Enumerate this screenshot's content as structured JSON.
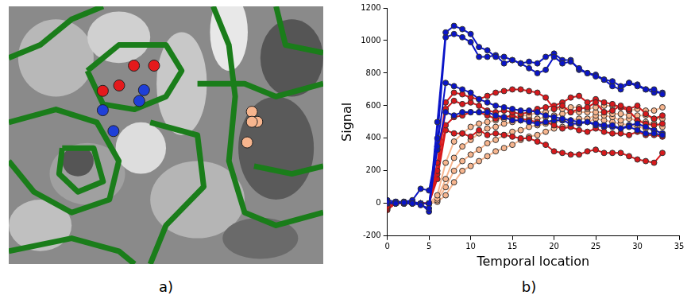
{
  "chart_data": [
    {
      "type": "scatter",
      "annotation": "a)",
      "tick_labels": false,
      "grid": false,
      "xlim": [
        0,
        100
      ],
      "ylim": [
        0,
        100
      ],
      "series": [
        {
          "color": "#e41a1c",
          "marker": "circle",
          "x": [
            39.8,
            46.2,
            29.9,
            35.1
          ],
          "values": [
            77.0,
            77.0,
            67.2,
            69.3
          ]
        },
        {
          "color": "#1f3fd8",
          "marker": "circle",
          "x": [
            43.0,
            41.5,
            29.9,
            33.3
          ],
          "values": [
            67.5,
            63.3,
            59.7,
            51.6
          ]
        },
        {
          "color": "#f7b58e",
          "marker": "circle",
          "x": [
            77.3,
            79.0,
            77.3,
            75.8
          ],
          "values": [
            59.1,
            55.2,
            55.2,
            47.2
          ]
        }
      ]
    },
    {
      "type": "line",
      "annotation": "b)",
      "x_label": "Temporal location",
      "y_label": "Signal",
      "grid": false,
      "xlim": [
        0,
        35
      ],
      "xticks": [
        0,
        5,
        10,
        15,
        20,
        25,
        30,
        35
      ],
      "ylim": [
        -200,
        1200
      ],
      "yticks": [
        -200,
        0,
        200,
        400,
        600,
        800,
        1000,
        1200
      ],
      "x": [
        0,
        1,
        2,
        3,
        4,
        5,
        6,
        7,
        8,
        9,
        10,
        11,
        12,
        13,
        14,
        15,
        16,
        17,
        18,
        19,
        20,
        21,
        22,
        23,
        24,
        25,
        26,
        27,
        28,
        29,
        30,
        31,
        32,
        33
      ],
      "series": [
        {
          "color": "#0a14c8",
          "marker": "circle",
          "line_style": "solid",
          "values": [
            10,
            0,
            5,
            0,
            -10,
            -30,
            500,
            1050,
            1090,
            1070,
            1040,
            960,
            940,
            900,
            900,
            880,
            860,
            830,
            800,
            820,
            900,
            860,
            870,
            830,
            800,
            780,
            760,
            750,
            720,
            740,
            720,
            700,
            700,
            670
          ]
        },
        {
          "color": "#0a14c8",
          "marker": "circle",
          "line_style": "solid",
          "values": [
            0,
            10,
            0,
            0,
            0,
            -50,
            400,
            1020,
            1040,
            1020,
            990,
            900,
            900,
            910,
            860,
            880,
            860,
            870,
            860,
            900,
            920,
            880,
            880,
            820,
            800,
            790,
            760,
            720,
            700,
            740,
            730,
            700,
            680,
            680
          ]
        },
        {
          "color": "#0a14c8",
          "marker": "circle",
          "line_style": "solid",
          "values": [
            20,
            10,
            10,
            20,
            90,
            80,
            350,
            740,
            720,
            700,
            680,
            640,
            620,
            600,
            590,
            580,
            570,
            570,
            560,
            540,
            530,
            520,
            510,
            500,
            500,
            490,
            480,
            480,
            460,
            470,
            450,
            430,
            430,
            420
          ]
        },
        {
          "color": "#0a14c8",
          "marker": "circle",
          "line_style": "solid",
          "values": [
            0,
            0,
            10,
            10,
            0,
            0,
            330,
            560,
            540,
            560,
            560,
            560,
            560,
            540,
            530,
            510,
            510,
            500,
            490,
            500,
            510,
            510,
            490,
            490,
            500,
            480,
            470,
            470,
            460,
            480,
            490,
            470,
            450,
            430
          ]
        },
        {
          "color": "#d7191c",
          "marker": "circle",
          "line_style": "solid",
          "values": [
            -20,
            10,
            0,
            0,
            0,
            0,
            250,
            620,
            680,
            670,
            650,
            640,
            660,
            680,
            690,
            700,
            700,
            690,
            680,
            650,
            580,
            600,
            560,
            580,
            590,
            620,
            560,
            570,
            600,
            580,
            600,
            550,
            520,
            540
          ]
        },
        {
          "color": "#d7191c",
          "marker": "circle",
          "line_style": "solid",
          "values": [
            -30,
            0,
            0,
            0,
            0,
            0,
            200,
            580,
            630,
            610,
            620,
            600,
            570,
            560,
            570,
            560,
            550,
            560,
            580,
            590,
            600,
            620,
            650,
            660,
            620,
            640,
            620,
            610,
            590,
            570,
            510,
            490,
            480,
            490
          ]
        },
        {
          "color": "#d7191c",
          "marker": "circle",
          "line_style": "solid",
          "values": [
            0,
            10,
            10,
            0,
            0,
            0,
            180,
            480,
            530,
            540,
            560,
            560,
            540,
            520,
            530,
            540,
            520,
            510,
            500,
            500,
            480,
            460,
            470,
            450,
            440,
            460,
            440,
            430,
            430,
            420,
            440,
            420,
            420,
            410
          ]
        },
        {
          "color": "#d7191c",
          "marker": "circle",
          "line_style": "solid",
          "values": [
            -40,
            0,
            0,
            0,
            0,
            0,
            150,
            450,
            430,
            430,
            410,
            450,
            420,
            430,
            420,
            410,
            400,
            400,
            380,
            360,
            320,
            310,
            300,
            300,
            320,
            330,
            310,
            310,
            310,
            290,
            270,
            260,
            250,
            310
          ]
        },
        {
          "color": "#f7b58e",
          "marker": "circle",
          "line_style": "solid",
          "values": [
            0,
            0,
            0,
            0,
            0,
            0,
            50,
            250,
            380,
            430,
            470,
            490,
            500,
            510,
            520,
            530,
            540,
            540,
            560,
            560,
            580,
            580,
            590,
            590,
            580,
            590,
            600,
            600,
            590,
            570,
            580,
            570,
            570,
            590
          ]
        },
        {
          "color": "#f7b58e",
          "marker": "circle",
          "line_style": "solid",
          "values": [
            0,
            0,
            0,
            0,
            0,
            0,
            30,
            150,
            280,
            350,
            390,
            430,
            460,
            470,
            490,
            500,
            510,
            520,
            520,
            530,
            540,
            550,
            560,
            560,
            560,
            560,
            560,
            550,
            550,
            540,
            540,
            540,
            520,
            520
          ]
        },
        {
          "color": "#f7b58e",
          "marker": "circle",
          "line_style": "solid",
          "values": [
            0,
            0,
            0,
            0,
            0,
            0,
            20,
            100,
            200,
            260,
            300,
            330,
            370,
            390,
            420,
            440,
            450,
            470,
            480,
            490,
            500,
            510,
            510,
            520,
            520,
            540,
            540,
            530,
            510,
            520,
            510,
            500,
            490,
            470
          ]
        },
        {
          "color": "#f7b58e",
          "marker": "circle",
          "line_style": "solid",
          "values": [
            0,
            0,
            0,
            0,
            0,
            0,
            10,
            50,
            130,
            200,
            230,
            260,
            290,
            320,
            340,
            360,
            390,
            410,
            420,
            440,
            460,
            470,
            480,
            490,
            500,
            520,
            510,
            500,
            490,
            480,
            470,
            460,
            450,
            430
          ]
        }
      ]
    }
  ]
}
